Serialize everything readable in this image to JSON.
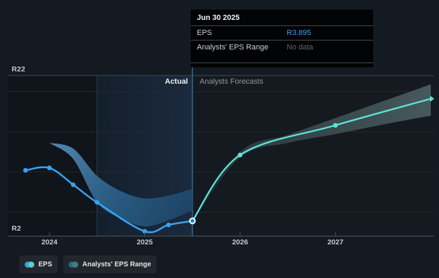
{
  "y_axis": {
    "top_label": "R22",
    "bottom_label": "R2"
  },
  "zones": {
    "actual": "Actual",
    "forecast": "Analysts Forecasts"
  },
  "tooltip": {
    "date": "Jun 30 2025",
    "rows": [
      {
        "label": "EPS",
        "value": "R3.895",
        "value_color": "#3da0f2"
      },
      {
        "label": "Analysts' EPS Range",
        "value": "No data",
        "value_color": "#61686f"
      }
    ]
  },
  "legend": [
    {
      "label": "EPS",
      "colors": [
        "#3b9ce1",
        "#59d1cb"
      ]
    },
    {
      "label": "Analysts' EPS Range",
      "colors": [
        "#2f6590",
        "#417e81"
      ]
    }
  ],
  "chart_data": {
    "type": "line",
    "title": "EPS: actual vs analysts forecasts",
    "currency": "R",
    "ylim": [
      2,
      22
    ],
    "xlim": [
      2023.68,
      2028.05
    ],
    "x_ticks": [
      "2024",
      "2025",
      "2026",
      "2027"
    ],
    "x_tick_values": [
      2024,
      2025,
      2026,
      2027
    ],
    "labeled_gridlines": {
      "R22": 22,
      "R2": 2
    },
    "minor_gridline_values": [
      20,
      15,
      10,
      5
    ],
    "divider_x": 2025.5,
    "highlight_span": [
      2024.5,
      2025.5
    ],
    "hover_point": {
      "x": 2025.5,
      "value": 3.895,
      "date": "Jun 30 2025"
    },
    "series": [
      {
        "name": "EPS (actual)",
        "color": "#36a2ee",
        "x": [
          2023.75,
          2024.0,
          2024.25,
          2024.5,
          2025.0,
          2025.25,
          2025.5
        ],
        "values": [
          10.2,
          10.5,
          8.4,
          6.2,
          2.6,
          3.4,
          3.895
        ]
      },
      {
        "name": "EPS (analysts forecast)",
        "color": "#5fe2d8",
        "x": [
          2025.5,
          2026.0,
          2027.0,
          2028.0
        ],
        "values": [
          3.895,
          12.1,
          15.8,
          19.1
        ]
      }
    ],
    "bands": [
      {
        "name": "Analysts' EPS Range (actual period)",
        "x": [
          2024.0,
          2024.25,
          2024.5,
          2024.75,
          2025.0,
          2025.25,
          2025.5
        ],
        "upper": [
          13.6,
          12.9,
          9.5,
          7.6,
          6.7,
          7.05,
          7.9
        ],
        "lower": [
          13.6,
          11.6,
          6.2,
          4.2,
          3.2,
          3.97,
          5.2
        ],
        "fill": [
          "#5a8fb8",
          "#2d628c",
          "#1c4568"
        ]
      },
      {
        "name": "Analysts' EPS Range (forecast period)",
        "x": [
          2025.5,
          2026.0,
          2026.5,
          2027.0,
          2027.5,
          2028.0
        ],
        "upper": [
          3.895,
          12.5,
          14.6,
          16.7,
          18.8,
          20.9
        ],
        "lower": [
          3.895,
          11.8,
          13.6,
          14.7,
          15.9,
          17.0
        ],
        "fill": [
          "#20282c",
          "#2e3c3f",
          "#46595c"
        ]
      }
    ]
  }
}
